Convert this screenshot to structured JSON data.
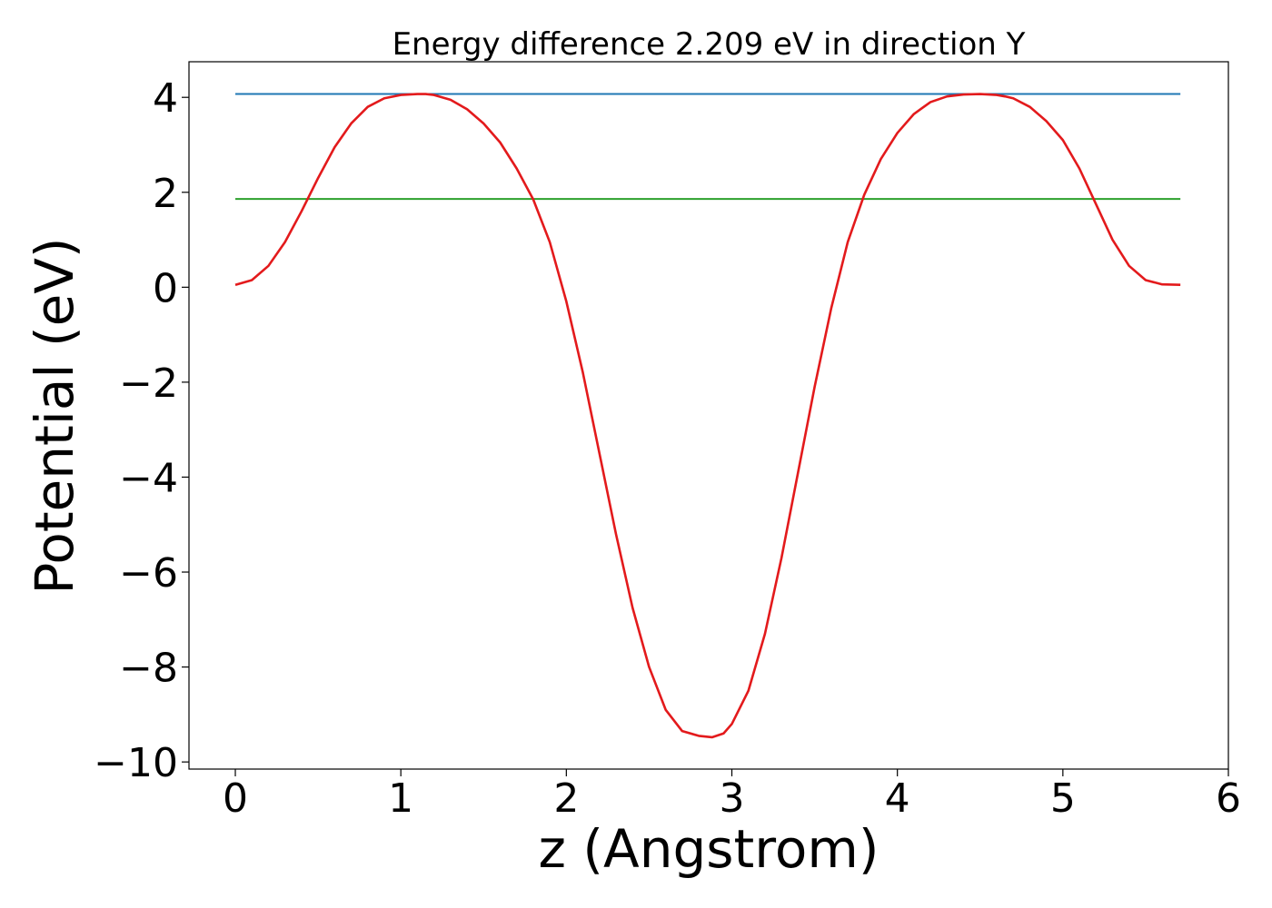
{
  "chart_data": {
    "type": "line",
    "title": "Energy difference 2.209 eV in direction Y",
    "xlabel": "z (Angstrom)",
    "ylabel": "Potential (eV)",
    "xlim": [
      -0.28,
      6.0
    ],
    "ylim": [
      -10.15,
      4.75
    ],
    "xticks": [
      0,
      1,
      2,
      3,
      4,
      5,
      6
    ],
    "xtick_labels": [
      "0",
      "1",
      "2",
      "3",
      "4",
      "5",
      "6"
    ],
    "yticks": [
      4,
      2,
      0,
      -2,
      -4,
      -6,
      -8,
      -10
    ],
    "ytick_labels": [
      "4",
      "2",
      "0",
      "−2",
      "−4",
      "−6",
      "−8",
      "−10"
    ],
    "grid": false,
    "series": [
      {
        "color": "#1f77b4",
        "x": [
          0,
          5.71
        ],
        "y": [
          4.07,
          4.07
        ]
      },
      {
        "color": "#2ca02c",
        "x": [
          0,
          5.71
        ],
        "y": [
          1.86,
          1.86
        ]
      },
      {
        "color": "#e31a1c",
        "x": [
          0,
          0.1,
          0.2,
          0.3,
          0.4,
          0.5,
          0.6,
          0.7,
          0.8,
          0.9,
          1.0,
          1.1,
          1.15,
          1.2,
          1.3,
          1.4,
          1.5,
          1.6,
          1.7,
          1.8,
          1.9,
          2.0,
          2.1,
          2.2,
          2.3,
          2.4,
          2.5,
          2.6,
          2.7,
          2.8,
          2.88,
          2.95,
          3.0,
          3.1,
          3.2,
          3.3,
          3.4,
          3.5,
          3.6,
          3.7,
          3.8,
          3.9,
          4.0,
          4.1,
          4.2,
          4.3,
          4.4,
          4.5,
          4.6,
          4.65,
          4.7,
          4.8,
          4.9,
          5.0,
          5.1,
          5.2,
          5.3,
          5.4,
          5.5,
          5.6,
          5.71
        ],
        "y": [
          0.05,
          0.15,
          0.45,
          0.95,
          1.6,
          2.3,
          2.95,
          3.45,
          3.8,
          3.98,
          4.05,
          4.07,
          4.07,
          4.05,
          3.95,
          3.75,
          3.45,
          3.05,
          2.5,
          1.85,
          0.95,
          -0.3,
          -1.8,
          -3.5,
          -5.2,
          -6.75,
          -8.0,
          -8.9,
          -9.35,
          -9.45,
          -9.48,
          -9.4,
          -9.2,
          -8.5,
          -7.3,
          -5.7,
          -3.9,
          -2.1,
          -0.45,
          0.95,
          1.95,
          2.7,
          3.25,
          3.65,
          3.9,
          4.02,
          4.06,
          4.07,
          4.05,
          4.02,
          3.98,
          3.8,
          3.5,
          3.1,
          2.5,
          1.75,
          1.0,
          0.45,
          0.15,
          0.06,
          0.05
        ]
      }
    ]
  }
}
